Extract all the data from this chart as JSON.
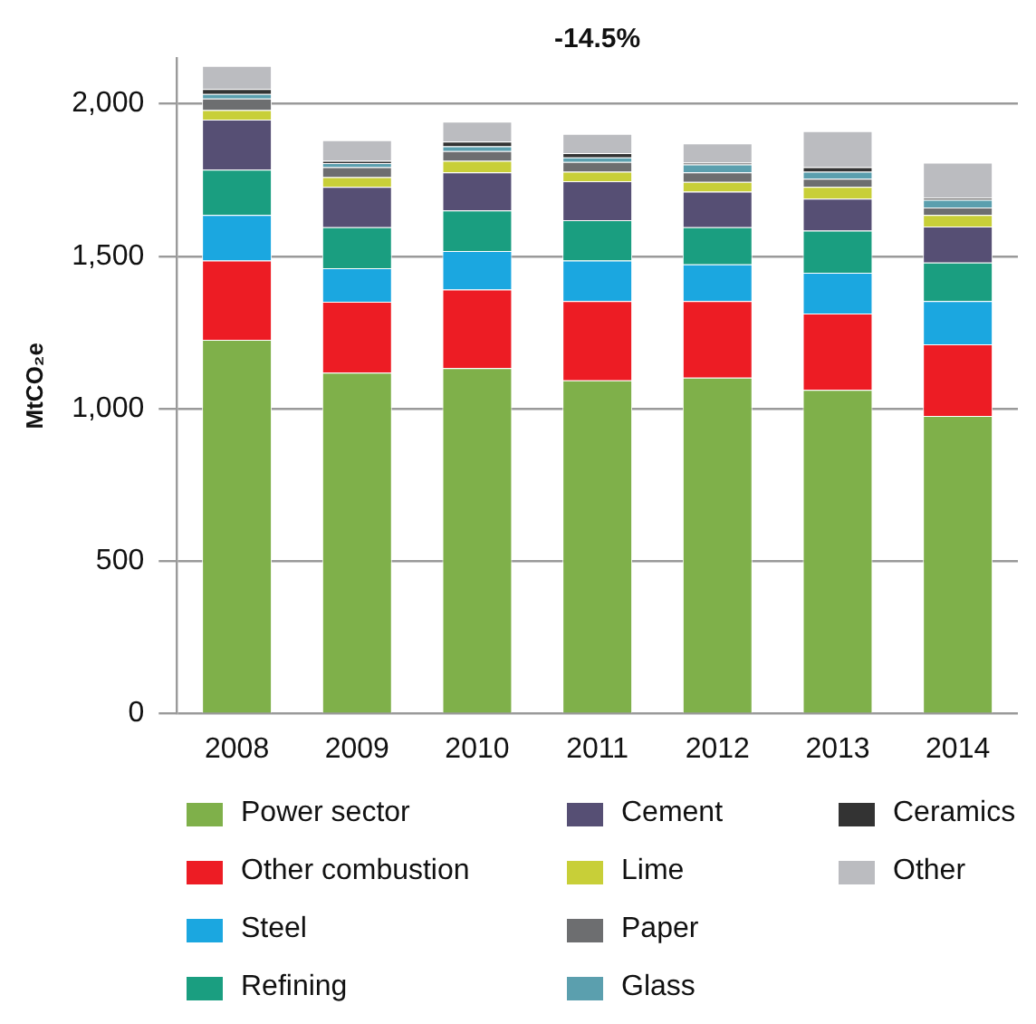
{
  "chart_data": {
    "type": "bar",
    "stacked": true,
    "ylabel": "MtCO₂e",
    "annotations": [
      "-14.5%"
    ],
    "categories": [
      "2008",
      "2009",
      "2010",
      "2011",
      "2012",
      "2013",
      "2014"
    ],
    "ylim": [
      0,
      2150
    ],
    "yticks": [
      0,
      {
        "value": 500,
        "label": "500"
      },
      {
        "value": 1000,
        "label": "1,000"
      },
      {
        "value": 1500,
        "label": "1,500"
      },
      {
        "value": 2000,
        "label": "2,000"
      }
    ],
    "grid": "y",
    "legend": "bottom",
    "series": [
      {
        "name": "Power sector",
        "color": "#7fb04a",
        "values": [
          1226,
          1118,
          1133,
          1093,
          1102,
          1062,
          976
        ]
      },
      {
        "name": "Other combustion",
        "color": "#ed1c24",
        "values": [
          260,
          233,
          258,
          260,
          251,
          250,
          235
        ]
      },
      {
        "name": "Steel",
        "color": "#1ba7e0",
        "values": [
          149,
          110,
          126,
          133,
          120,
          134,
          142
        ]
      },
      {
        "name": "Refining",
        "color": "#1a9e80",
        "values": [
          149,
          134,
          133,
          132,
          122,
          138,
          126
        ]
      },
      {
        "name": "Cement",
        "color": "#564f74",
        "values": [
          164,
          132,
          125,
          128,
          117,
          105,
          118
        ]
      },
      {
        "name": "Lime",
        "color": "#c8cf38",
        "values": [
          31,
          32,
          38,
          31,
          32,
          38,
          38
        ]
      },
      {
        "name": "Paper",
        "color": "#6d6e70",
        "values": [
          38,
          33,
          32,
          32,
          31,
          27,
          25
        ]
      },
      {
        "name": "Glass",
        "color": "#5b9fae",
        "values": [
          15,
          13,
          15,
          15,
          26,
          23,
          25
        ]
      },
      {
        "name": "Ceramics",
        "color": "#333333",
        "values": [
          16,
          8,
          16,
          14,
          6,
          15,
          7
        ]
      },
      {
        "name": "Other",
        "color": "#bbbcc0",
        "values": [
          76,
          67,
          65,
          63,
          63,
          118,
          115
        ]
      }
    ]
  }
}
